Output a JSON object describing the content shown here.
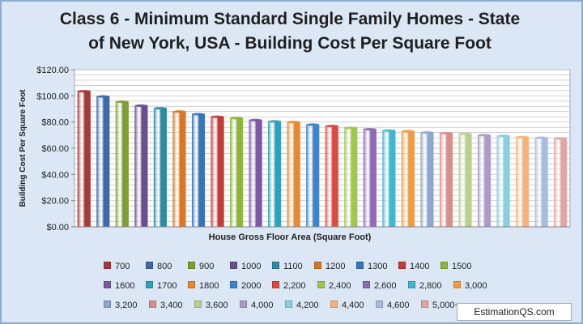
{
  "colors": {
    "background": "#dbe7f5",
    "plot_background": "#ffffff",
    "border": "#8eaacf",
    "palette": [
      "#a33b3a",
      "#3f6aa8",
      "#7f9e3a",
      "#6a4e8f",
      "#2f8aa3",
      "#d6772a",
      "#3973b8",
      "#c23b38",
      "#8eb43e",
      "#7a58a4",
      "#33a0b9",
      "#e58a32",
      "#3f83c8",
      "#d94b47",
      "#9ec651",
      "#8f6bb8",
      "#43b6cf",
      "#f09b46",
      "#8ea7cc",
      "#d98e8c",
      "#b9cf8f",
      "#ab9bc7",
      "#8acfde",
      "#f5b27f",
      "#a9bcdd",
      "#e0a6a4"
    ]
  },
  "chart_data": {
    "type": "bar",
    "title": "Class 6 - Minimum Standard Single Family Homes  - State of New York, USA  - Building Cost Per Square Foot",
    "title_lines": [
      "Class 6 - Minimum Standard Single Family Homes  - State",
      "of New York, USA  - Building Cost Per Square Foot"
    ],
    "xlabel": "House Gross Floor Area (Square Foot)",
    "ylabel": "Building Cost Per Square Foot",
    "ylim": [
      0,
      120
    ],
    "yticks": [
      0,
      20,
      40,
      60,
      80,
      100,
      120
    ],
    "ytick_labels": [
      "$0.00",
      "$20.00",
      "$40.00",
      "$60.00",
      "$80.00",
      "$100.00",
      "$120.00"
    ],
    "grid": true,
    "legend_position": "bottom",
    "categories": [
      "700",
      "800",
      "900",
      "1000",
      "1100",
      "1200",
      "1300",
      "1400",
      "1500",
      "1600",
      "1700",
      "1800",
      "2000",
      "2,200",
      "2,400",
      "2,600",
      "2,800",
      "3,000",
      "3,200",
      "3,400",
      "3,600",
      "4,000",
      "4,200",
      "4,400",
      "4,600",
      "5,000+"
    ],
    "values": [
      103.5,
      99.5,
      95.5,
      92.5,
      90.5,
      88.0,
      86.0,
      84.0,
      83.0,
      81.5,
      80.5,
      80.0,
      78.0,
      77.0,
      75.5,
      74.5,
      73.5,
      73.0,
      72.0,
      71.5,
      71.0,
      70.0,
      69.5,
      68.5,
      68.0,
      67.5
    ]
  },
  "watermark": "EstimationQS.com"
}
